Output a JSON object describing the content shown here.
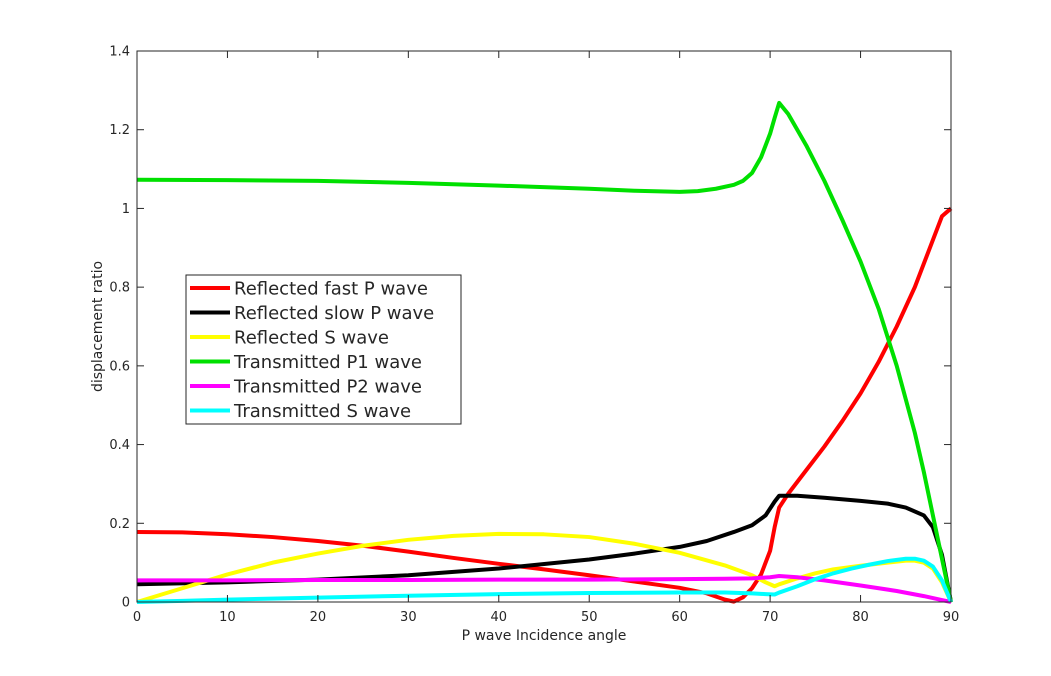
{
  "chart_data": {
    "type": "line",
    "title": "",
    "xlabel": "P wave Incidence angle",
    "ylabel": "displacement ratio",
    "xlim": [
      0,
      90
    ],
    "ylim": [
      0,
      1.4
    ],
    "xticks": [
      0,
      10,
      20,
      30,
      40,
      50,
      60,
      70,
      80,
      90
    ],
    "yticks": [
      0,
      0.2,
      0.4,
      0.6,
      0.8,
      1,
      1.2,
      1.4
    ],
    "grid": false,
    "legend_position": "center-left",
    "series": [
      {
        "name": "Reflected fast P wave",
        "color": "#ff0000",
        "points": [
          [
            0,
            0.178
          ],
          [
            5,
            0.177
          ],
          [
            10,
            0.172
          ],
          [
            15,
            0.165
          ],
          [
            20,
            0.155
          ],
          [
            25,
            0.143
          ],
          [
            30,
            0.128
          ],
          [
            35,
            0.112
          ],
          [
            40,
            0.097
          ],
          [
            45,
            0.083
          ],
          [
            50,
            0.068
          ],
          [
            55,
            0.052
          ],
          [
            60,
            0.036
          ],
          [
            63,
            0.022
          ],
          [
            65,
            0.006
          ],
          [
            66,
            0.001
          ],
          [
            67,
            0.012
          ],
          [
            68,
            0.035
          ],
          [
            69,
            0.07
          ],
          [
            70,
            0.13
          ],
          [
            70.5,
            0.19
          ],
          [
            71,
            0.24
          ],
          [
            72,
            0.275
          ],
          [
            74,
            0.335
          ],
          [
            76,
            0.395
          ],
          [
            78,
            0.46
          ],
          [
            80,
            0.53
          ],
          [
            82,
            0.61
          ],
          [
            84,
            0.7
          ],
          [
            86,
            0.8
          ],
          [
            88,
            0.92
          ],
          [
            89,
            0.98
          ],
          [
            90,
            1.0
          ]
        ]
      },
      {
        "name": "Reflected slow P wave",
        "color": "#000000",
        "points": [
          [
            0,
            0.045
          ],
          [
            10,
            0.05
          ],
          [
            20,
            0.057
          ],
          [
            30,
            0.068
          ],
          [
            40,
            0.085
          ],
          [
            50,
            0.108
          ],
          [
            55,
            0.123
          ],
          [
            60,
            0.14
          ],
          [
            63,
            0.155
          ],
          [
            66,
            0.178
          ],
          [
            68,
            0.195
          ],
          [
            69.5,
            0.22
          ],
          [
            70.5,
            0.255
          ],
          [
            71,
            0.27
          ],
          [
            73,
            0.27
          ],
          [
            76,
            0.265
          ],
          [
            80,
            0.257
          ],
          [
            83,
            0.25
          ],
          [
            85,
            0.24
          ],
          [
            87,
            0.22
          ],
          [
            88,
            0.19
          ],
          [
            89,
            0.12
          ],
          [
            89.5,
            0.06
          ],
          [
            90,
            0.0
          ]
        ]
      },
      {
        "name": "Reflected S wave",
        "color": "#ffff00",
        "points": [
          [
            0,
            0.0
          ],
          [
            5,
            0.035
          ],
          [
            10,
            0.07
          ],
          [
            15,
            0.1
          ],
          [
            20,
            0.123
          ],
          [
            25,
            0.143
          ],
          [
            30,
            0.158
          ],
          [
            35,
            0.168
          ],
          [
            40,
            0.173
          ],
          [
            45,
            0.172
          ],
          [
            50,
            0.165
          ],
          [
            55,
            0.148
          ],
          [
            60,
            0.125
          ],
          [
            65,
            0.093
          ],
          [
            68,
            0.068
          ],
          [
            69.5,
            0.05
          ],
          [
            70.5,
            0.04
          ],
          [
            71,
            0.045
          ],
          [
            73,
            0.06
          ],
          [
            75,
            0.073
          ],
          [
            77,
            0.083
          ],
          [
            80,
            0.092
          ],
          [
            83,
            0.1
          ],
          [
            85,
            0.105
          ],
          [
            86,
            0.105
          ],
          [
            87,
            0.1
          ],
          [
            88,
            0.085
          ],
          [
            89,
            0.05
          ],
          [
            90,
            0.0
          ]
        ]
      },
      {
        "name": "Transmitted P1 wave",
        "color": "#00e000",
        "points": [
          [
            0,
            1.073
          ],
          [
            10,
            1.072
          ],
          [
            20,
            1.07
          ],
          [
            30,
            1.065
          ],
          [
            40,
            1.058
          ],
          [
            50,
            1.05
          ],
          [
            55,
            1.045
          ],
          [
            60,
            1.042
          ],
          [
            62,
            1.044
          ],
          [
            64,
            1.05
          ],
          [
            66,
            1.06
          ],
          [
            67,
            1.07
          ],
          [
            68,
            1.09
          ],
          [
            69,
            1.13
          ],
          [
            70,
            1.19
          ],
          [
            70.5,
            1.23
          ],
          [
            71,
            1.268
          ],
          [
            72,
            1.24
          ],
          [
            74,
            1.16
          ],
          [
            76,
            1.07
          ],
          [
            78,
            0.97
          ],
          [
            80,
            0.865
          ],
          [
            82,
            0.745
          ],
          [
            84,
            0.6
          ],
          [
            86,
            0.43
          ],
          [
            87,
            0.33
          ],
          [
            88,
            0.22
          ],
          [
            89,
            0.11
          ],
          [
            90,
            0.0
          ]
        ]
      },
      {
        "name": "Transmitted P2 wave",
        "color": "#ff00ff",
        "points": [
          [
            0,
            0.055
          ],
          [
            10,
            0.055
          ],
          [
            20,
            0.056
          ],
          [
            30,
            0.056
          ],
          [
            40,
            0.057
          ],
          [
            50,
            0.057
          ],
          [
            60,
            0.058
          ],
          [
            65,
            0.059
          ],
          [
            68,
            0.06
          ],
          [
            70,
            0.063
          ],
          [
            71,
            0.066
          ],
          [
            73,
            0.063
          ],
          [
            76,
            0.055
          ],
          [
            80,
            0.042
          ],
          [
            84,
            0.028
          ],
          [
            87,
            0.015
          ],
          [
            89,
            0.005
          ],
          [
            90,
            0.0
          ]
        ]
      },
      {
        "name": "Transmitted S wave",
        "color": "#00ffff",
        "points": [
          [
            0,
            0.0
          ],
          [
            5,
            0.003
          ],
          [
            10,
            0.006
          ],
          [
            20,
            0.011
          ],
          [
            30,
            0.016
          ],
          [
            40,
            0.02
          ],
          [
            50,
            0.023
          ],
          [
            60,
            0.024
          ],
          [
            65,
            0.024
          ],
          [
            68,
            0.022
          ],
          [
            69.5,
            0.02
          ],
          [
            70.5,
            0.019
          ],
          [
            71,
            0.024
          ],
          [
            73,
            0.04
          ],
          [
            75,
            0.058
          ],
          [
            77,
            0.073
          ],
          [
            79,
            0.085
          ],
          [
            81,
            0.095
          ],
          [
            83,
            0.104
          ],
          [
            85,
            0.11
          ],
          [
            86,
            0.11
          ],
          [
            87,
            0.105
          ],
          [
            88,
            0.09
          ],
          [
            89,
            0.055
          ],
          [
            90,
            0.0
          ]
        ]
      }
    ]
  }
}
